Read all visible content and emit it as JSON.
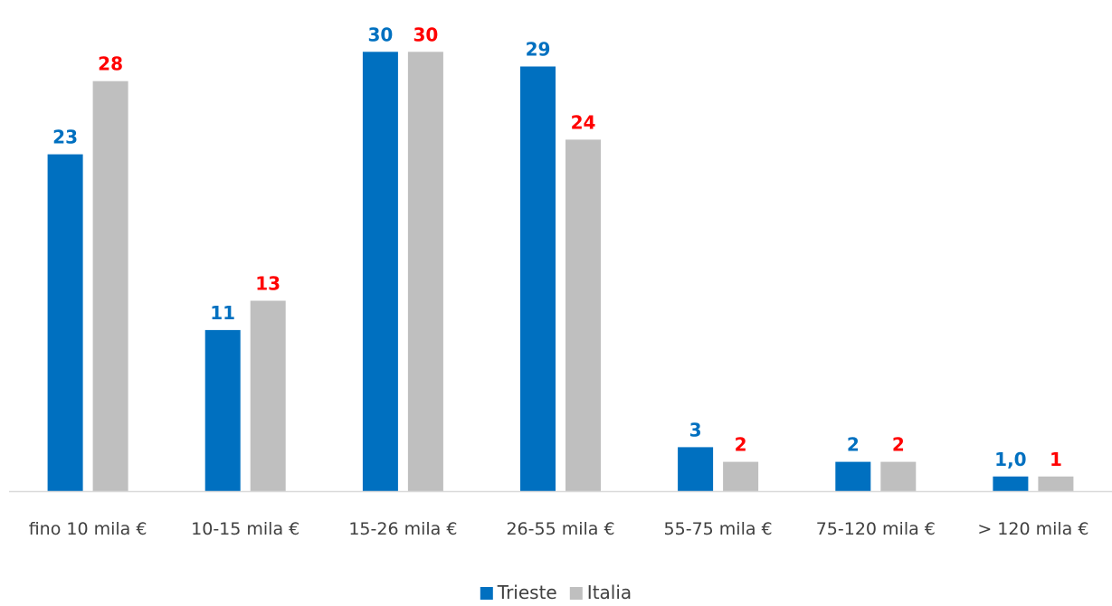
{
  "chart_data": {
    "type": "bar",
    "categories": [
      "fino 10 mila €",
      "10-15 mila €",
      "15-26 mila €",
      "26-55 mila €",
      "55-75 mila €",
      "75-120 mila €",
      "> 120 mila €"
    ],
    "series": [
      {
        "name": "Trieste",
        "values": [
          23,
          11,
          30,
          29,
          3,
          2,
          1.0
        ],
        "labels": [
          "23",
          "11",
          "30",
          "29",
          "3",
          "2",
          "1,0"
        ],
        "color": "#0070C0",
        "label_color": "#0070C0"
      },
      {
        "name": "Italia",
        "values": [
          28,
          13,
          30,
          24,
          2,
          2,
          1
        ],
        "labels": [
          "28",
          "13",
          "30",
          "24",
          "2",
          "2",
          "1"
        ],
        "color": "#BFBFBF",
        "label_color": "#FF0000"
      }
    ],
    "title": "",
    "xlabel": "",
    "ylabel": "",
    "ylim": [
      0,
      31.5
    ],
    "grid": false,
    "legend": "bottom",
    "axis_color": "#D9D9D9"
  }
}
